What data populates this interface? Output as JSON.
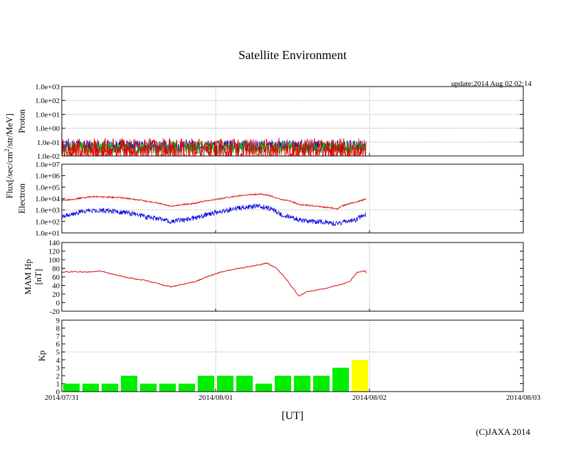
{
  "title": "Satellite Environment",
  "update": "update:2014 Aug 02 02:14",
  "copyright": "(C)JAXA 2014",
  "xlabel": "[UT]",
  "flux_label_1": "Flux[/sec/cm",
  "flux_label_sup": "2",
  "flux_label_2": "/str/MeV]",
  "colors": {
    "red": "#e00000",
    "blue": "#0000dd",
    "green": "#00c000",
    "kp_green": "#00ee00",
    "kp_yellow": "#ffff00",
    "grid": "#888888"
  },
  "chart_data": [
    {
      "type": "line",
      "id": "proton",
      "ylabel": "Proton",
      "yscale": "log",
      "ylim": [
        0.01,
        1000
      ],
      "yticks": [
        0.01,
        0.1,
        1,
        10,
        100,
        1000
      ],
      "yticklabels": [
        "1.0e-02",
        "1.0e-01",
        "1.0e+00",
        "1.0e+01",
        "1.0e+02",
        "1.0e+03"
      ],
      "xlim": [
        0,
        72
      ],
      "series": [
        {
          "name": "blue",
          "color": "#0000dd",
          "x": [
            0,
            6,
            12,
            18,
            24,
            30,
            36,
            42,
            47.5
          ],
          "y": [
            0.05,
            0.05,
            0.05,
            0.05,
            0.05,
            0.05,
            0.05,
            0.05,
            0.05
          ]
        },
        {
          "name": "green",
          "color": "#00c000",
          "x": [
            0,
            6,
            12,
            18,
            24,
            30,
            36,
            42,
            47.5
          ],
          "y": [
            0.04,
            0.04,
            0.04,
            0.04,
            0.04,
            0.04,
            0.04,
            0.04,
            0.04
          ]
        },
        {
          "name": "red",
          "color": "#e00000",
          "x": [
            0,
            6,
            12,
            18,
            24,
            30,
            36,
            42,
            47.5
          ],
          "y": [
            0.02,
            0.02,
            0.02,
            0.02,
            0.02,
            0.02,
            0.02,
            0.02,
            0.02
          ]
        }
      ]
    },
    {
      "type": "line",
      "id": "electron",
      "ylabel": "Electron",
      "yscale": "log",
      "ylim": [
        10,
        10000000
      ],
      "yticks": [
        10,
        100,
        1000,
        10000,
        100000,
        1000000,
        10000000
      ],
      "yticklabels": [
        "1.0e+01",
        "1.0e+02",
        "1.0e+03",
        "1.0e+04",
        "1.0e+05",
        "1.0e+06",
        "1.0e+07"
      ],
      "xlim": [
        0,
        72
      ],
      "series": [
        {
          "name": "red",
          "color": "#e00000",
          "x": [
            0,
            2,
            5,
            9,
            13,
            17,
            21,
            25,
            28,
            31,
            34,
            37,
            40,
            43,
            46,
            47.5
          ],
          "y": [
            7000,
            9000,
            15000,
            12000,
            6000,
            2000,
            4000,
            10000,
            18000,
            25000,
            9000,
            3000,
            2000,
            1300,
            5000,
            9000
          ]
        },
        {
          "name": "blue",
          "color": "#0000dd",
          "x": [
            0,
            2,
            5,
            9,
            13,
            17,
            21,
            25,
            28,
            31,
            34,
            37,
            40,
            43,
            46,
            47.5
          ],
          "y": [
            300,
            500,
            1000,
            700,
            250,
            90,
            200,
            700,
            1500,
            2200,
            400,
            120,
            100,
            60,
            150,
            400
          ]
        }
      ]
    },
    {
      "type": "line",
      "id": "mam-hp",
      "ylabel": "MAM Hp",
      "ylabel2": "[nT]",
      "yscale": "linear",
      "ylim": [
        -20,
        140
      ],
      "yticks": [
        -20,
        0,
        20,
        40,
        60,
        80,
        100,
        120,
        140
      ],
      "yticklabels": [
        "-20",
        "0",
        "20",
        "40",
        "60",
        "80",
        "100",
        "120",
        "140"
      ],
      "xlim": [
        0,
        72
      ],
      "series": [
        {
          "name": "red",
          "color": "#e00000",
          "x": [
            0,
            2,
            4,
            6,
            8,
            10,
            13,
            15,
            17,
            19,
            21,
            23,
            25,
            27,
            30,
            32,
            33.5,
            35,
            37,
            38,
            41,
            44,
            45,
            46,
            47.3,
            47.6
          ],
          "y": [
            71,
            72,
            71,
            74,
            66,
            59,
            52,
            44,
            37,
            43,
            50,
            62,
            72,
            78,
            86,
            92,
            80,
            55,
            15,
            24,
            33,
            44,
            50,
            70,
            74,
            66
          ]
        }
      ]
    },
    {
      "type": "bar",
      "id": "kp",
      "ylabel": "Kp",
      "ylim": [
        0,
        9
      ],
      "yticks": [
        0,
        1,
        2,
        3,
        4,
        5,
        6,
        7,
        8,
        9
      ],
      "yticklabels": [
        "0",
        "1",
        "2",
        "3",
        "4",
        "5",
        "6",
        "7",
        "8",
        "9"
      ],
      "xlim": [
        0,
        72
      ],
      "bar_start_hours": [
        0,
        3,
        6,
        9,
        12,
        15,
        18,
        21,
        24,
        27,
        30,
        33,
        36,
        39,
        42,
        45
      ],
      "values": [
        1,
        1,
        1,
        2,
        1,
        1,
        1,
        2,
        2,
        2,
        1,
        2,
        2,
        2,
        3,
        4
      ],
      "colors": [
        "#00ee00",
        "#00ee00",
        "#00ee00",
        "#00ee00",
        "#00ee00",
        "#00ee00",
        "#00ee00",
        "#00ee00",
        "#00ee00",
        "#00ee00",
        "#00ee00",
        "#00ee00",
        "#00ee00",
        "#00ee00",
        "#00ee00",
        "#ffff00"
      ],
      "hline": 5
    }
  ],
  "x_axis": {
    "xlim": [
      0,
      72
    ],
    "ticks": [
      0,
      24,
      48,
      72
    ],
    "ticklabels": [
      "2014/07/31",
      "2014/08/01",
      "2014/08/02",
      "2014/08/03"
    ]
  }
}
